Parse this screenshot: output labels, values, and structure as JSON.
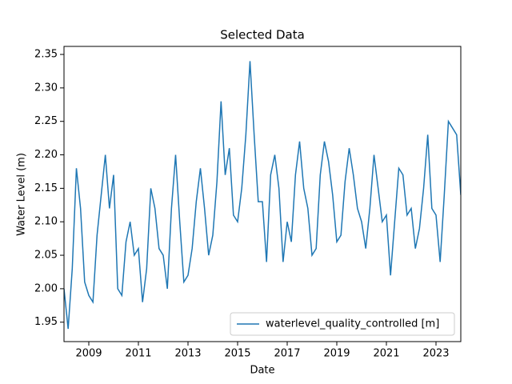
{
  "chart_data": {
    "type": "line",
    "title": "Selected Data",
    "xlabel": "Date",
    "ylabel": "Water Level (m)",
    "x": [
      2008,
      2008.167,
      2008.333,
      2008.5,
      2008.667,
      2008.833,
      2009,
      2009.167,
      2009.333,
      2009.5,
      2009.667,
      2009.833,
      2010,
      2010.167,
      2010.333,
      2010.5,
      2010.667,
      2010.833,
      2011,
      2011.167,
      2011.333,
      2011.5,
      2011.667,
      2011.833,
      2012,
      2012.167,
      2012.333,
      2012.5,
      2012.667,
      2012.833,
      2013,
      2013.167,
      2013.333,
      2013.5,
      2013.667,
      2013.833,
      2014,
      2014.167,
      2014.333,
      2014.5,
      2014.667,
      2014.833,
      2015,
      2015.167,
      2015.333,
      2015.5,
      2015.667,
      2015.833,
      2016,
      2016.167,
      2016.333,
      2016.5,
      2016.667,
      2016.833,
      2017,
      2017.167,
      2017.333,
      2017.5,
      2017.667,
      2017.833,
      2018,
      2018.167,
      2018.333,
      2018.5,
      2018.667,
      2018.833,
      2019,
      2019.167,
      2019.333,
      2019.5,
      2019.667,
      2019.833,
      2020,
      2020.167,
      2020.333,
      2020.5,
      2020.667,
      2020.833,
      2021,
      2021.167,
      2021.333,
      2021.5,
      2021.667,
      2021.833,
      2022,
      2022.167,
      2022.333,
      2022.5,
      2022.667,
      2022.833,
      2023,
      2023.167,
      2023.333,
      2023.5,
      2023.667,
      2023.833,
      2024
    ],
    "series": [
      {
        "name": "waterlevel_quality_controlled [m]",
        "color": "#1f77b4",
        "values": [
          2.0,
          1.94,
          2.03,
          2.18,
          2.12,
          2.01,
          1.99,
          1.98,
          2.08,
          2.14,
          2.2,
          2.12,
          2.17,
          2.0,
          1.99,
          2.07,
          2.1,
          2.05,
          2.06,
          1.98,
          2.03,
          2.15,
          2.12,
          2.06,
          2.05,
          2.0,
          2.12,
          2.2,
          2.1,
          2.01,
          2.02,
          2.06,
          2.13,
          2.18,
          2.12,
          2.05,
          2.08,
          2.16,
          2.28,
          2.17,
          2.21,
          2.11,
          2.1,
          2.15,
          2.23,
          2.34,
          2.23,
          2.13,
          2.13,
          2.04,
          2.17,
          2.2,
          2.15,
          2.04,
          2.1,
          2.07,
          2.17,
          2.22,
          2.15,
          2.12,
          2.05,
          2.06,
          2.17,
          2.22,
          2.19,
          2.14,
          2.07,
          2.08,
          2.16,
          2.21,
          2.17,
          2.12,
          2.1,
          2.06,
          2.12,
          2.2,
          2.15,
          2.1,
          2.11,
          2.02,
          2.1,
          2.18,
          2.17,
          2.11,
          2.12,
          2.06,
          2.09,
          2.15,
          2.23,
          2.12,
          2.11,
          2.04,
          2.14,
          2.25,
          2.24,
          2.23,
          2.14
        ]
      }
    ],
    "xlim": [
      2008,
      2024
    ],
    "xticks": [
      2009,
      2011,
      2013,
      2015,
      2017,
      2019,
      2021,
      2023
    ],
    "ylim": [
      1.921,
      2.362
    ],
    "yticks": [
      1.95,
      {
        "value": 2.0,
        "label": "2.00"
      },
      2.05,
      {
        "value": 2.1,
        "label": "2.10"
      },
      2.15,
      {
        "value": 2.2,
        "label": "2.20"
      },
      2.25,
      {
        "value": 2.3,
        "label": "2.30"
      },
      2.35
    ],
    "legend": "lower right"
  }
}
